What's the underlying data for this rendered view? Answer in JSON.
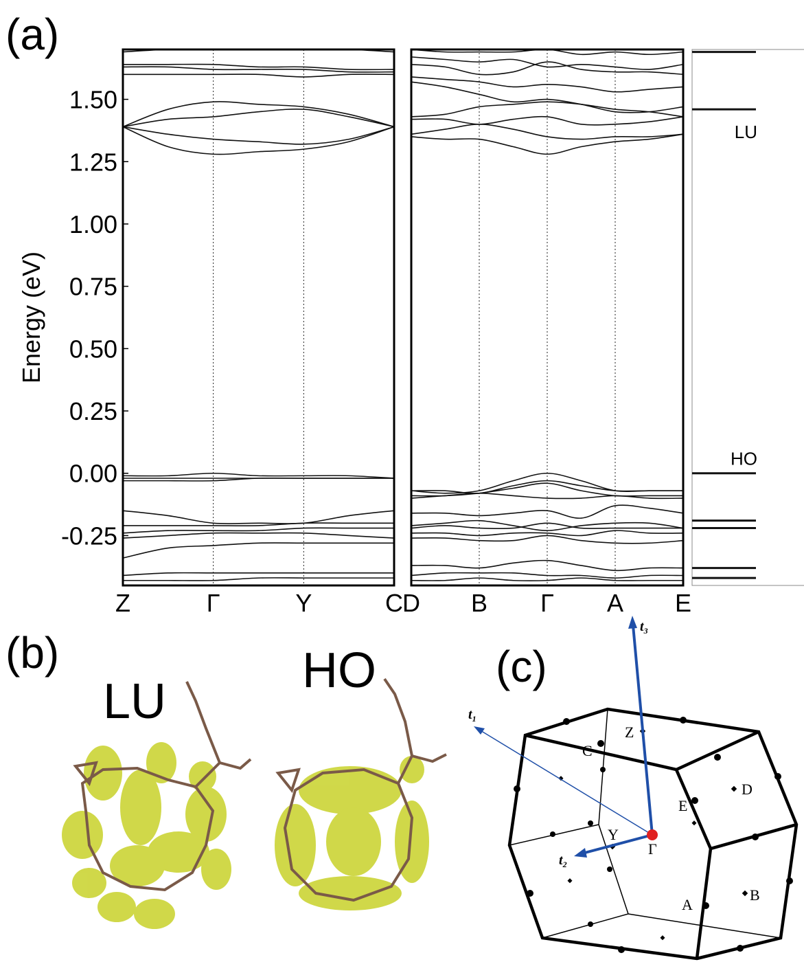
{
  "panel_labels": [
    "(a)",
    "(b)",
    "(c)"
  ],
  "chart_data": [
    {
      "type": "line",
      "color": "#111111",
      "ylabel": "Energy (eV)",
      "x": [
        0,
        0.5,
        1,
        1.5,
        2,
        2.5,
        3
      ],
      "xlim": [
        0,
        3
      ],
      "xticks": [
        {
          "value": 0,
          "label": "Z"
        },
        {
          "value": 1,
          "label": "Γ"
        },
        {
          "value": 2,
          "label": "Y"
        },
        {
          "value": 3,
          "label": "C"
        }
      ],
      "ylim": [
        -0.45,
        1.7
      ],
      "yticks": [
        {
          "value": 1.5,
          "label": "1.50"
        },
        1.25,
        {
          "value": 1,
          "label": "1.00"
        },
        0.75,
        {
          "value": 0.5,
          "label": "0.50"
        },
        0.25,
        {
          "value": 0,
          "label": "0.00"
        },
        -0.25
      ],
      "series": [
        {
          "values": [
            1.69,
            1.7,
            1.7,
            1.7,
            1.7,
            1.7,
            1.69
          ]
        },
        {
          "values": [
            1.64,
            1.64,
            1.64,
            1.63,
            1.63,
            1.62,
            1.62
          ]
        },
        {
          "values": [
            1.63,
            1.63,
            1.62,
            1.62,
            1.62,
            1.61,
            1.61
          ]
        },
        {
          "values": [
            1.6,
            1.6,
            1.6,
            1.6,
            1.59,
            1.6,
            1.6
          ]
        },
        {
          "values": [
            1.39,
            1.46,
            1.49,
            1.48,
            1.47,
            1.44,
            1.39
          ]
        },
        {
          "values": [
            1.39,
            1.42,
            1.43,
            1.45,
            1.46,
            1.43,
            1.39
          ]
        },
        {
          "values": [
            1.39,
            1.36,
            1.34,
            1.33,
            1.32,
            1.34,
            1.39
          ]
        },
        {
          "values": [
            1.39,
            1.31,
            1.28,
            1.29,
            1.3,
            1.33,
            1.39
          ]
        },
        {
          "values": [
            -0.01,
            -0.01,
            0,
            -0.01,
            -0.01,
            -0.01,
            -0.02
          ]
        },
        {
          "values": [
            -0.02,
            -0.02,
            -0.02,
            -0.02,
            -0.02,
            -0.02,
            -0.02
          ]
        },
        {
          "values": [
            -0.03,
            -0.03,
            -0.03,
            -0.02,
            -0.02,
            -0.02,
            -0.02
          ]
        },
        {
          "values": [
            -0.15,
            -0.17,
            -0.2,
            -0.2,
            -0.2,
            -0.17,
            -0.15
          ]
        },
        {
          "values": [
            -0.21,
            -0.21,
            -0.21,
            -0.21,
            -0.2,
            -0.2,
            -0.2
          ]
        },
        {
          "values": [
            -0.24,
            -0.23,
            -0.23,
            -0.23,
            -0.22,
            -0.22,
            -0.22
          ]
        },
        {
          "values": [
            -0.26,
            -0.25,
            -0.24,
            -0.24,
            -0.24,
            -0.25,
            -0.26
          ]
        },
        {
          "values": [
            -0.34,
            -0.3,
            -0.29,
            -0.28,
            -0.28,
            -0.28,
            -0.28
          ]
        },
        {
          "values": [
            -0.41,
            -0.4,
            -0.4,
            -0.4,
            -0.4,
            -0.4,
            -0.4
          ]
        },
        {
          "values": [
            -0.43,
            -0.43,
            -0.43,
            -0.42,
            -0.42,
            -0.42,
            -0.42
          ]
        }
      ]
    },
    {
      "type": "line",
      "color": "#111111",
      "x": [
        0,
        0.5,
        1,
        1.5,
        2,
        2.5,
        3,
        3.5,
        4
      ],
      "xlim": [
        0,
        4
      ],
      "xticks": [
        {
          "value": 0,
          "label": "D"
        },
        {
          "value": 1,
          "label": "B"
        },
        {
          "value": 2,
          "label": "Γ"
        },
        {
          "value": 3,
          "label": "A"
        },
        {
          "value": 4,
          "label": "E"
        }
      ],
      "ylim": [
        -0.45,
        1.7
      ],
      "series": [
        {
          "values": [
            1.7,
            1.69,
            1.69,
            1.69,
            1.7,
            1.68,
            1.69,
            1.68,
            1.69
          ]
        },
        {
          "values": [
            1.67,
            1.66,
            1.65,
            1.66,
            1.63,
            1.64,
            1.63,
            1.62,
            1.64
          ]
        },
        {
          "values": [
            1.64,
            1.63,
            1.6,
            1.61,
            1.65,
            1.62,
            1.61,
            1.61,
            1.6
          ]
        },
        {
          "values": [
            1.59,
            1.58,
            1.57,
            1.55,
            1.56,
            1.55,
            1.53,
            1.54,
            1.55
          ]
        },
        {
          "values": [
            1.57,
            1.55,
            1.52,
            1.49,
            1.5,
            1.48,
            1.45,
            1.45,
            1.47
          ]
        },
        {
          "values": [
            1.43,
            1.44,
            1.47,
            1.48,
            1.49,
            1.48,
            1.46,
            1.45,
            1.43
          ]
        },
        {
          "values": [
            1.42,
            1.42,
            1.4,
            1.42,
            1.43,
            1.4,
            1.4,
            1.41,
            1.43
          ]
        },
        {
          "values": [
            1.36,
            1.38,
            1.4,
            1.38,
            1.35,
            1.34,
            1.35,
            1.35,
            1.36
          ]
        },
        {
          "values": [
            1.35,
            1.34,
            1.34,
            1.31,
            1.28,
            1.31,
            1.33,
            1.34,
            1.36
          ]
        },
        {
          "values": [
            -0.07,
            -0.08,
            -0.07,
            -0.03,
            0,
            -0.03,
            -0.07,
            -0.07,
            -0.07
          ]
        },
        {
          "values": [
            -0.07,
            -0.07,
            -0.08,
            -0.05,
            -0.03,
            -0.05,
            -0.07,
            -0.07,
            -0.07
          ]
        },
        {
          "values": [
            -0.09,
            -0.09,
            -0.08,
            -0.06,
            -0.04,
            -0.07,
            -0.09,
            -0.09,
            -0.09
          ]
        },
        {
          "values": [
            -0.1,
            -0.09,
            -0.08,
            -0.09,
            -0.1,
            -0.1,
            -0.09,
            -0.1,
            -0.1
          ]
        },
        {
          "values": [
            -0.16,
            -0.16,
            -0.17,
            -0.16,
            -0.15,
            -0.18,
            -0.13,
            -0.14,
            -0.16
          ]
        },
        {
          "values": [
            -0.21,
            -0.2,
            -0.19,
            -0.21,
            -0.23,
            -0.21,
            -0.2,
            -0.2,
            -0.22
          ]
        },
        {
          "values": [
            -0.22,
            -0.21,
            -0.22,
            -0.22,
            -0.2,
            -0.22,
            -0.22,
            -0.22,
            -0.22
          ]
        },
        {
          "values": [
            -0.24,
            -0.24,
            -0.25,
            -0.24,
            -0.24,
            -0.25,
            -0.23,
            -0.24,
            -0.24
          ]
        },
        {
          "values": [
            -0.26,
            -0.26,
            -0.27,
            -0.27,
            -0.25,
            -0.27,
            -0.28,
            -0.28,
            -0.27
          ]
        },
        {
          "values": [
            -0.37,
            -0.37,
            -0.38,
            -0.36,
            -0.35,
            -0.37,
            -0.39,
            -0.38,
            -0.38
          ]
        },
        {
          "values": [
            -0.41,
            -0.4,
            -0.4,
            -0.4,
            -0.41,
            -0.41,
            -0.42,
            -0.41,
            -0.41
          ]
        },
        {
          "values": [
            -0.43,
            -0.43,
            -0.42,
            -0.43,
            -0.43,
            -0.42,
            -0.43,
            -0.43,
            -0.43
          ]
        }
      ]
    },
    {
      "type": "level",
      "color": "#111111",
      "ylim": [
        -0.45,
        1.7
      ],
      "levels": [
        {
          "value": 1.69
        },
        {
          "value": 1.46,
          "label": "LU"
        },
        {
          "value": 0,
          "label": "HO"
        },
        {
          "value": -0.19
        },
        {
          "value": -0.22
        },
        {
          "value": -0.38
        },
        {
          "value": -0.42
        }
      ]
    }
  ],
  "orbitals": [
    "LU",
    "HO"
  ],
  "brillouin_zone": {
    "points": [
      "Z",
      "C",
      "D",
      "E",
      "Y",
      "Γ",
      "A",
      "B"
    ],
    "vectors": [
      {
        "name": "t",
        "sub": "1"
      },
      {
        "name": "t",
        "sub": "2"
      },
      {
        "name": "t",
        "sub": "3"
      }
    ]
  }
}
